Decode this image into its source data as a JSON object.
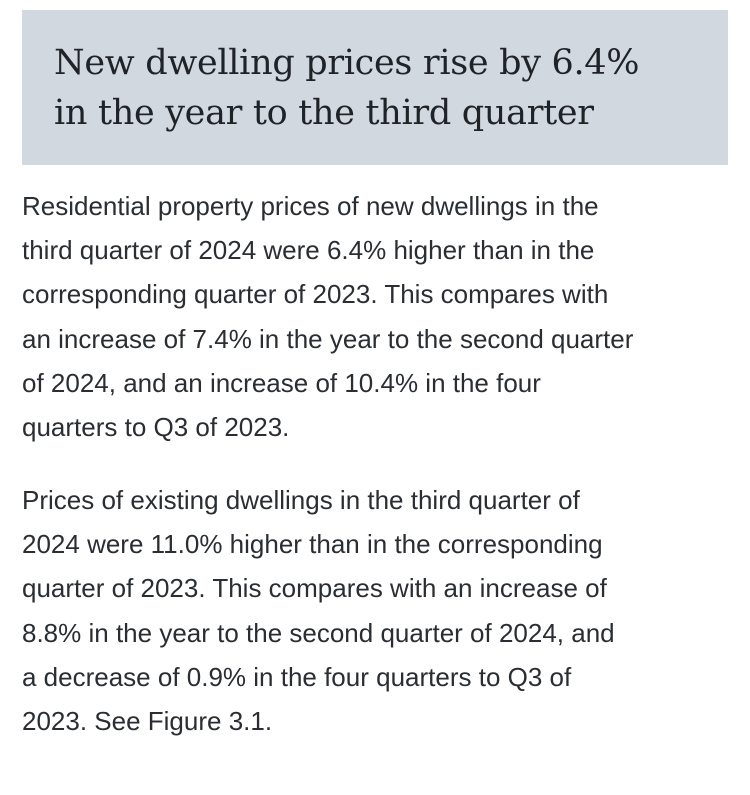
{
  "headline": {
    "line1": "New dwelling prices rise by 6.4%",
    "line2": "in the year to the third quarter"
  },
  "paragraphs": [
    {
      "lines": [
        "Residential property prices of new dwellings in the",
        "third quarter of 2024 were 6.4% higher than in the",
        "corresponding quarter of 2023. This compares with",
        "an increase of 7.4% in the year to the second quarter",
        "of 2024, and an increase of 10.4% in the four",
        "quarters to Q3 of 2023."
      ]
    },
    {
      "lines": [
        "Prices of existing dwellings in the third quarter of",
        "2024 were 11.0% higher than in the corresponding",
        "quarter of 2023. This compares with an increase of",
        "8.8% in the year to the second quarter of 2024, and",
        "a decrease of 0.9% in the four quarters to Q3 of",
        "2023. See Figure 3.1."
      ]
    }
  ],
  "colors": {
    "headline_background": "#d2d8df",
    "headline_text": "#1f2327",
    "body_text": "#2a2e33",
    "page_background": "#ffffff"
  }
}
